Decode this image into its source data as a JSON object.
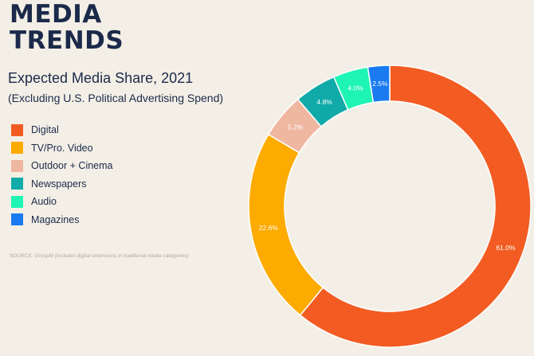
{
  "brand": {
    "line1": "MEDIA",
    "line2": "TRENDS"
  },
  "chart_data": {
    "type": "pie",
    "title": "Expected Media Share, 2021",
    "subtitle": "(Excluding U.S. Political Advertising Spend)",
    "legend_position": "left",
    "slices": [
      {
        "label": "Digital",
        "value": 61.0,
        "display": "61.0%",
        "color": "#f25c22"
      },
      {
        "label": "TV/Pro. Video",
        "value": 22.6,
        "display": "22.6%",
        "color": "#fdab00"
      },
      {
        "label": "Outdoor + Cinema",
        "value": 5.2,
        "display": "5.2%",
        "color": "#efb6a0"
      },
      {
        "label": "Newspapers",
        "value": 4.8,
        "display": "4.8%",
        "color": "#10aaa8"
      },
      {
        "label": "Audio",
        "value": 4.0,
        "display": "4.0%",
        "color": "#1ef4b4"
      },
      {
        "label": "Magazines",
        "value": 2.5,
        "display": "2.5%",
        "color": "#1a7bf0"
      }
    ]
  },
  "source": {
    "prefix": "SOURCE: GroupM",
    "note": "(includes digital extensions in traditional media categories)"
  }
}
